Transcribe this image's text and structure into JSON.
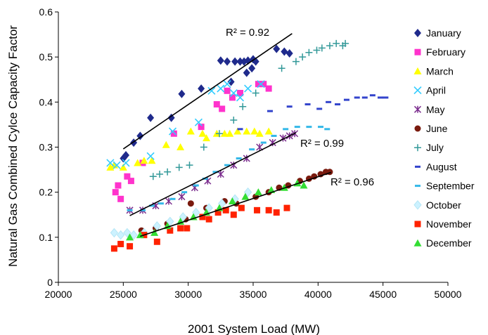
{
  "chart_data": {
    "type": "scatter",
    "xlabel": "2001 System Load (MW)",
    "ylabel": "Natural Gas Combined Cylce Capacity Factor",
    "xlim": [
      20000,
      50000
    ],
    "ylim": [
      0,
      0.6
    ],
    "xticks": [
      20000,
      25000,
      30000,
      35000,
      40000,
      45000,
      50000
    ],
    "yticks": [
      0,
      0.1,
      0.2,
      0.3,
      0.4,
      0.5,
      0.6
    ],
    "xtick_labels": [
      "20000",
      "25000",
      "30000",
      "35000",
      "40000",
      "45000",
      "50000"
    ],
    "ytick_labels": [
      "0",
      "0.1",
      "0.2",
      "0.3",
      "0.4",
      "0.5",
      "0.6"
    ],
    "grid": false,
    "legend_position": "right",
    "series": [
      {
        "name": "January",
        "marker": "diamond",
        "color": "#1f2a8c",
        "x": [
          25000,
          25200,
          25800,
          26300,
          27100,
          28700,
          29500,
          31000,
          32500,
          33000,
          33300,
          33600,
          34000,
          34300,
          34500,
          34600,
          34900,
          35000,
          35200,
          36800,
          37400,
          37800
        ],
        "y": [
          0.275,
          0.282,
          0.31,
          0.325,
          0.365,
          0.365,
          0.418,
          0.43,
          0.492,
          0.49,
          0.445,
          0.49,
          0.49,
          0.49,
          0.465,
          0.492,
          0.475,
          0.495,
          0.49,
          0.518,
          0.512,
          0.508
        ]
      },
      {
        "name": "February",
        "marker": "square",
        "color": "#ff33cc",
        "x": [
          24400,
          24600,
          24800,
          25300,
          25600,
          26500,
          28900,
          31000,
          32200,
          32600,
          33000,
          33400,
          34000,
          35400,
          36200,
          35800
        ],
        "y": [
          0.2,
          0.215,
          0.185,
          0.235,
          0.225,
          0.265,
          0.33,
          0.345,
          0.395,
          0.385,
          0.425,
          0.41,
          0.42,
          0.44,
          0.43,
          0.44
        ],
        "trendline": {
          "from": [
            25000,
            0.296
          ],
          "to": [
            38000,
            0.552
          ],
          "label": "R² = 0.92"
        }
      },
      {
        "name": "March",
        "marker": "triangle",
        "color": "#ffff00",
        "x": [
          24000,
          24300,
          25000,
          26100,
          26600,
          27200,
          28300,
          29400,
          30200,
          31100,
          31400,
          32200,
          32800,
          33200,
          33800,
          34500,
          35100,
          35500,
          36200
        ],
        "y": [
          0.255,
          0.26,
          0.255,
          0.265,
          0.27,
          0.27,
          0.305,
          0.3,
          0.335,
          0.33,
          0.32,
          0.33,
          0.33,
          0.33,
          0.335,
          0.335,
          0.335,
          0.33,
          0.335
        ]
      },
      {
        "name": "April",
        "marker": "x",
        "color": "#33ccff",
        "x": [
          24000,
          24500,
          25200,
          27100,
          28800,
          30800,
          31800,
          32500,
          33000,
          33500,
          34000,
          34600,
          35600
        ],
        "y": [
          0.265,
          0.26,
          0.265,
          0.28,
          0.335,
          0.355,
          0.425,
          0.43,
          0.44,
          0.42,
          0.41,
          0.43,
          0.44
        ]
      },
      {
        "name": "May",
        "marker": "asterisk",
        "color": "#7b2d8e",
        "x": [
          25500,
          26500,
          27500,
          28500,
          29500,
          30500,
          31500,
          32500,
          33500,
          34500,
          35500,
          36500,
          37300,
          37800,
          38200
        ],
        "y": [
          0.16,
          0.16,
          0.17,
          0.18,
          0.19,
          0.21,
          0.225,
          0.24,
          0.26,
          0.275,
          0.3,
          0.31,
          0.32,
          0.325,
          0.33
        ],
        "trendline": {
          "from": [
            25500,
            0.148
          ],
          "to": [
            38300,
            0.332
          ],
          "label": "R² = 0.99"
        }
      },
      {
        "name": "June",
        "marker": "circle",
        "color": "#7a1a0e",
        "x": [
          26400,
          27500,
          28400,
          29800,
          30200,
          31400,
          32800,
          33700,
          35200,
          36200,
          37000,
          37700,
          38600,
          39300,
          39700,
          40200,
          40600,
          40900
        ],
        "y": [
          0.115,
          0.12,
          0.13,
          0.14,
          0.175,
          0.165,
          0.18,
          0.175,
          0.19,
          0.2,
          0.21,
          0.215,
          0.225,
          0.23,
          0.235,
          0.24,
          0.245,
          0.245
        ],
        "trendline": {
          "from": [
            26300,
            0.102
          ],
          "to": [
            41000,
            0.244
          ],
          "label": "R² = 0.96"
        }
      },
      {
        "name": "July",
        "marker": "plus",
        "color": "#339999",
        "x": [
          27300,
          27800,
          28400,
          29300,
          30100,
          31200,
          32400,
          33500,
          34200,
          35200,
          37200,
          38300,
          38800,
          39300,
          39900,
          40300,
          40900,
          41400,
          41900,
          42100
        ],
        "y": [
          0.235,
          0.24,
          0.245,
          0.255,
          0.26,
          0.3,
          0.33,
          0.36,
          0.39,
          0.42,
          0.475,
          0.49,
          0.5,
          0.51,
          0.515,
          0.52,
          0.525,
          0.53,
          0.525,
          0.53
        ]
      },
      {
        "name": "August",
        "marker": "dash",
        "color": "#3344cc",
        "x": [
          34000,
          36300,
          37800,
          39200,
          40100,
          40800,
          41500,
          42200,
          43000,
          43600,
          44200,
          44800,
          45200
        ],
        "y": [
          0.34,
          0.38,
          0.39,
          0.395,
          0.385,
          0.4,
          0.395,
          0.405,
          0.41,
          0.41,
          0.415,
          0.41,
          0.41
        ]
      },
      {
        "name": "September",
        "marker": "dash",
        "color": "#33b8e8",
        "x": [
          25500,
          26500,
          27200,
          27900,
          28800,
          29700,
          30600,
          31300,
          32100,
          33000,
          33900,
          34900,
          35800,
          36600,
          37500,
          38400,
          39300,
          40200,
          40700
        ],
        "y": [
          0.16,
          0.16,
          0.17,
          0.175,
          0.185,
          0.2,
          0.215,
          0.23,
          0.245,
          0.26,
          0.275,
          0.295,
          0.31,
          0.325,
          0.34,
          0.345,
          0.345,
          0.345,
          0.34
        ]
      },
      {
        "name": "October",
        "marker": "diamond",
        "color": "#ccf2ff",
        "x": [
          24300,
          24800,
          25300,
          25800,
          26600,
          27600,
          28600,
          29600,
          30600,
          31600,
          32600,
          33600,
          34600
        ],
        "y": [
          0.11,
          0.105,
          0.11,
          0.105,
          0.11,
          0.125,
          0.135,
          0.145,
          0.155,
          0.165,
          0.175,
          0.185,
          0.2
        ]
      },
      {
        "name": "November",
        "marker": "square",
        "color": "#ff2200",
        "x": [
          24300,
          24800,
          25500,
          26600,
          27600,
          28600,
          29400,
          29900,
          31100,
          31600,
          32300,
          32900,
          33500,
          34100,
          35300,
          36200,
          36800,
          37600
        ],
        "y": [
          0.075,
          0.085,
          0.08,
          0.105,
          0.09,
          0.115,
          0.12,
          0.12,
          0.145,
          0.14,
          0.155,
          0.16,
          0.15,
          0.165,
          0.16,
          0.16,
          0.155,
          0.165
        ]
      },
      {
        "name": "December",
        "marker": "triangle",
        "color": "#33dd33",
        "x": [
          25500,
          26300,
          27400,
          28400,
          29400,
          30400,
          31400,
          32400,
          33400,
          34400,
          35400,
          36400,
          37400,
          38400,
          38900
        ],
        "y": [
          0.1,
          0.105,
          0.11,
          0.125,
          0.135,
          0.145,
          0.155,
          0.165,
          0.18,
          0.19,
          0.2,
          0.205,
          0.21,
          0.22,
          0.215
        ]
      }
    ]
  }
}
